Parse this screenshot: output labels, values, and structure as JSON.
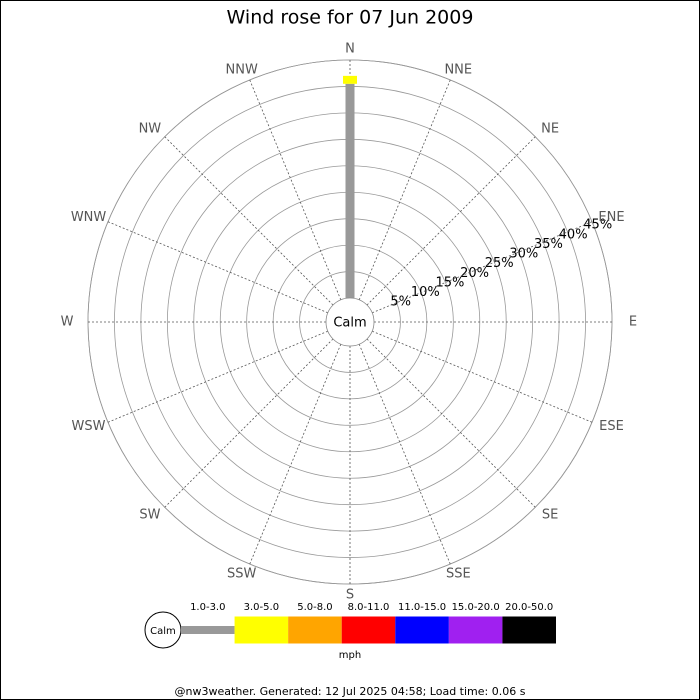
{
  "chart_data": {
    "type": "windrose",
    "title": "Wind rose for 07 Jun 2009",
    "calm_label": "Calm",
    "units": "mph",
    "footer": "@nw3weather.  Generated: 12 Jul 2025 04:58; Load time: 0.06 s",
    "categories": [
      "N",
      "NNE",
      "NE",
      "ENE",
      "E",
      "ESE",
      "SE",
      "SSE",
      "S",
      "SSW",
      "SW",
      "WSW",
      "W",
      "WNW",
      "NW",
      "NNW"
    ],
    "rlim": [
      0,
      45
    ],
    "rticks": [
      {
        "value": 5,
        "label": "5%"
      },
      {
        "value": 10,
        "label": "10%"
      },
      {
        "value": 15,
        "label": "15%"
      },
      {
        "value": 20,
        "label": "20%"
      },
      {
        "value": 25,
        "label": "25%"
      },
      {
        "value": 30,
        "label": "30%"
      },
      {
        "value": 35,
        "label": "35%"
      },
      {
        "value": 40,
        "label": "40%"
      },
      {
        "value": 45,
        "label": "45%"
      }
    ],
    "series": [
      {
        "name": "1.0-3.0",
        "color": "#999999",
        "values": [
          40.5,
          0,
          0,
          0,
          0,
          0,
          0,
          0,
          0,
          0,
          0,
          0,
          0,
          0,
          0,
          0
        ]
      },
      {
        "name": "3.0-5.0",
        "color": "#ffff00",
        "values": [
          1.5,
          0,
          0,
          0,
          0,
          0,
          0,
          0,
          0,
          0,
          0,
          0,
          0,
          0,
          0,
          0
        ]
      },
      {
        "name": "5.0-8.0",
        "color": "#ffa500",
        "values": [
          0,
          0,
          0,
          0,
          0,
          0,
          0,
          0,
          0,
          0,
          0,
          0,
          0,
          0,
          0,
          0
        ]
      },
      {
        "name": "8.0-11.0",
        "color": "#ff0000",
        "values": [
          0,
          0,
          0,
          0,
          0,
          0,
          0,
          0,
          0,
          0,
          0,
          0,
          0,
          0,
          0,
          0
        ]
      },
      {
        "name": "11.0-15.0",
        "color": "#0000ff",
        "values": [
          0,
          0,
          0,
          0,
          0,
          0,
          0,
          0,
          0,
          0,
          0,
          0,
          0,
          0,
          0,
          0
        ]
      },
      {
        "name": "15.0-20.0",
        "color": "#a020f0",
        "values": [
          0,
          0,
          0,
          0,
          0,
          0,
          0,
          0,
          0,
          0,
          0,
          0,
          0,
          0,
          0,
          0
        ]
      },
      {
        "name": "20.0-50.0",
        "color": "#000000",
        "values": [
          0,
          0,
          0,
          0,
          0,
          0,
          0,
          0,
          0,
          0,
          0,
          0,
          0,
          0,
          0,
          0
        ]
      }
    ]
  }
}
